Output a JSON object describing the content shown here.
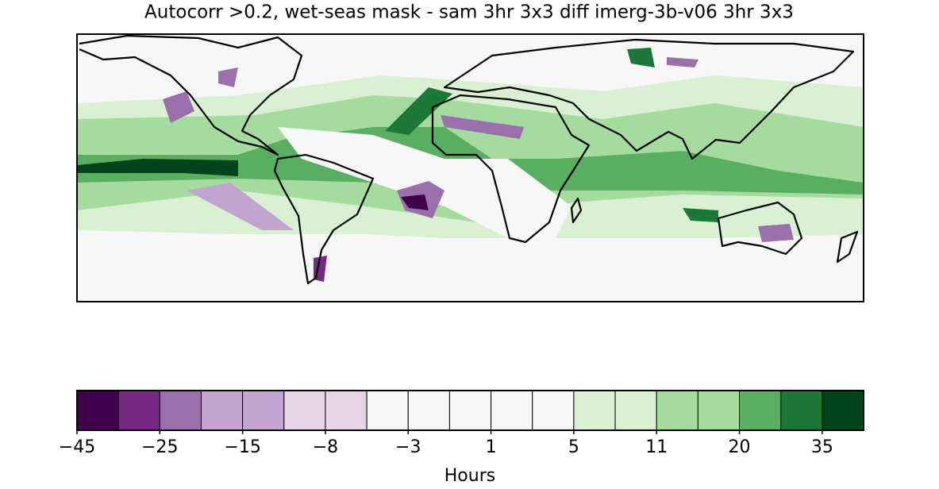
{
  "title": "Autocorr >0.2, wet-seas mask - sam 3hr 3x3 diff imerg-3b-v06 3hr 3x3",
  "colorbar": {
    "label": "Hours",
    "colors": [
      "#40004b",
      "#762a83",
      "#9970ab",
      "#c2a5cf",
      "#c2a5cf",
      "#e7d4e8",
      "#e7d4e8",
      "#f7f7f7",
      "#f7f7f7",
      "#f7f7f7",
      "#f7f7f7",
      "#f7f7f7",
      "#d9f0d3",
      "#d9f0d3",
      "#a6dba0",
      "#a6dba0",
      "#5aae61",
      "#1b7837",
      "#00441b"
    ],
    "ticks": [
      {
        "value": -45,
        "label": "−45"
      },
      {
        "value": -25,
        "label": "−25"
      },
      {
        "value": -15,
        "label": "−15"
      },
      {
        "value": -8,
        "label": "−8"
      },
      {
        "value": -3,
        "label": "−3"
      },
      1,
      5,
      11,
      20,
      35
    ]
  }
}
